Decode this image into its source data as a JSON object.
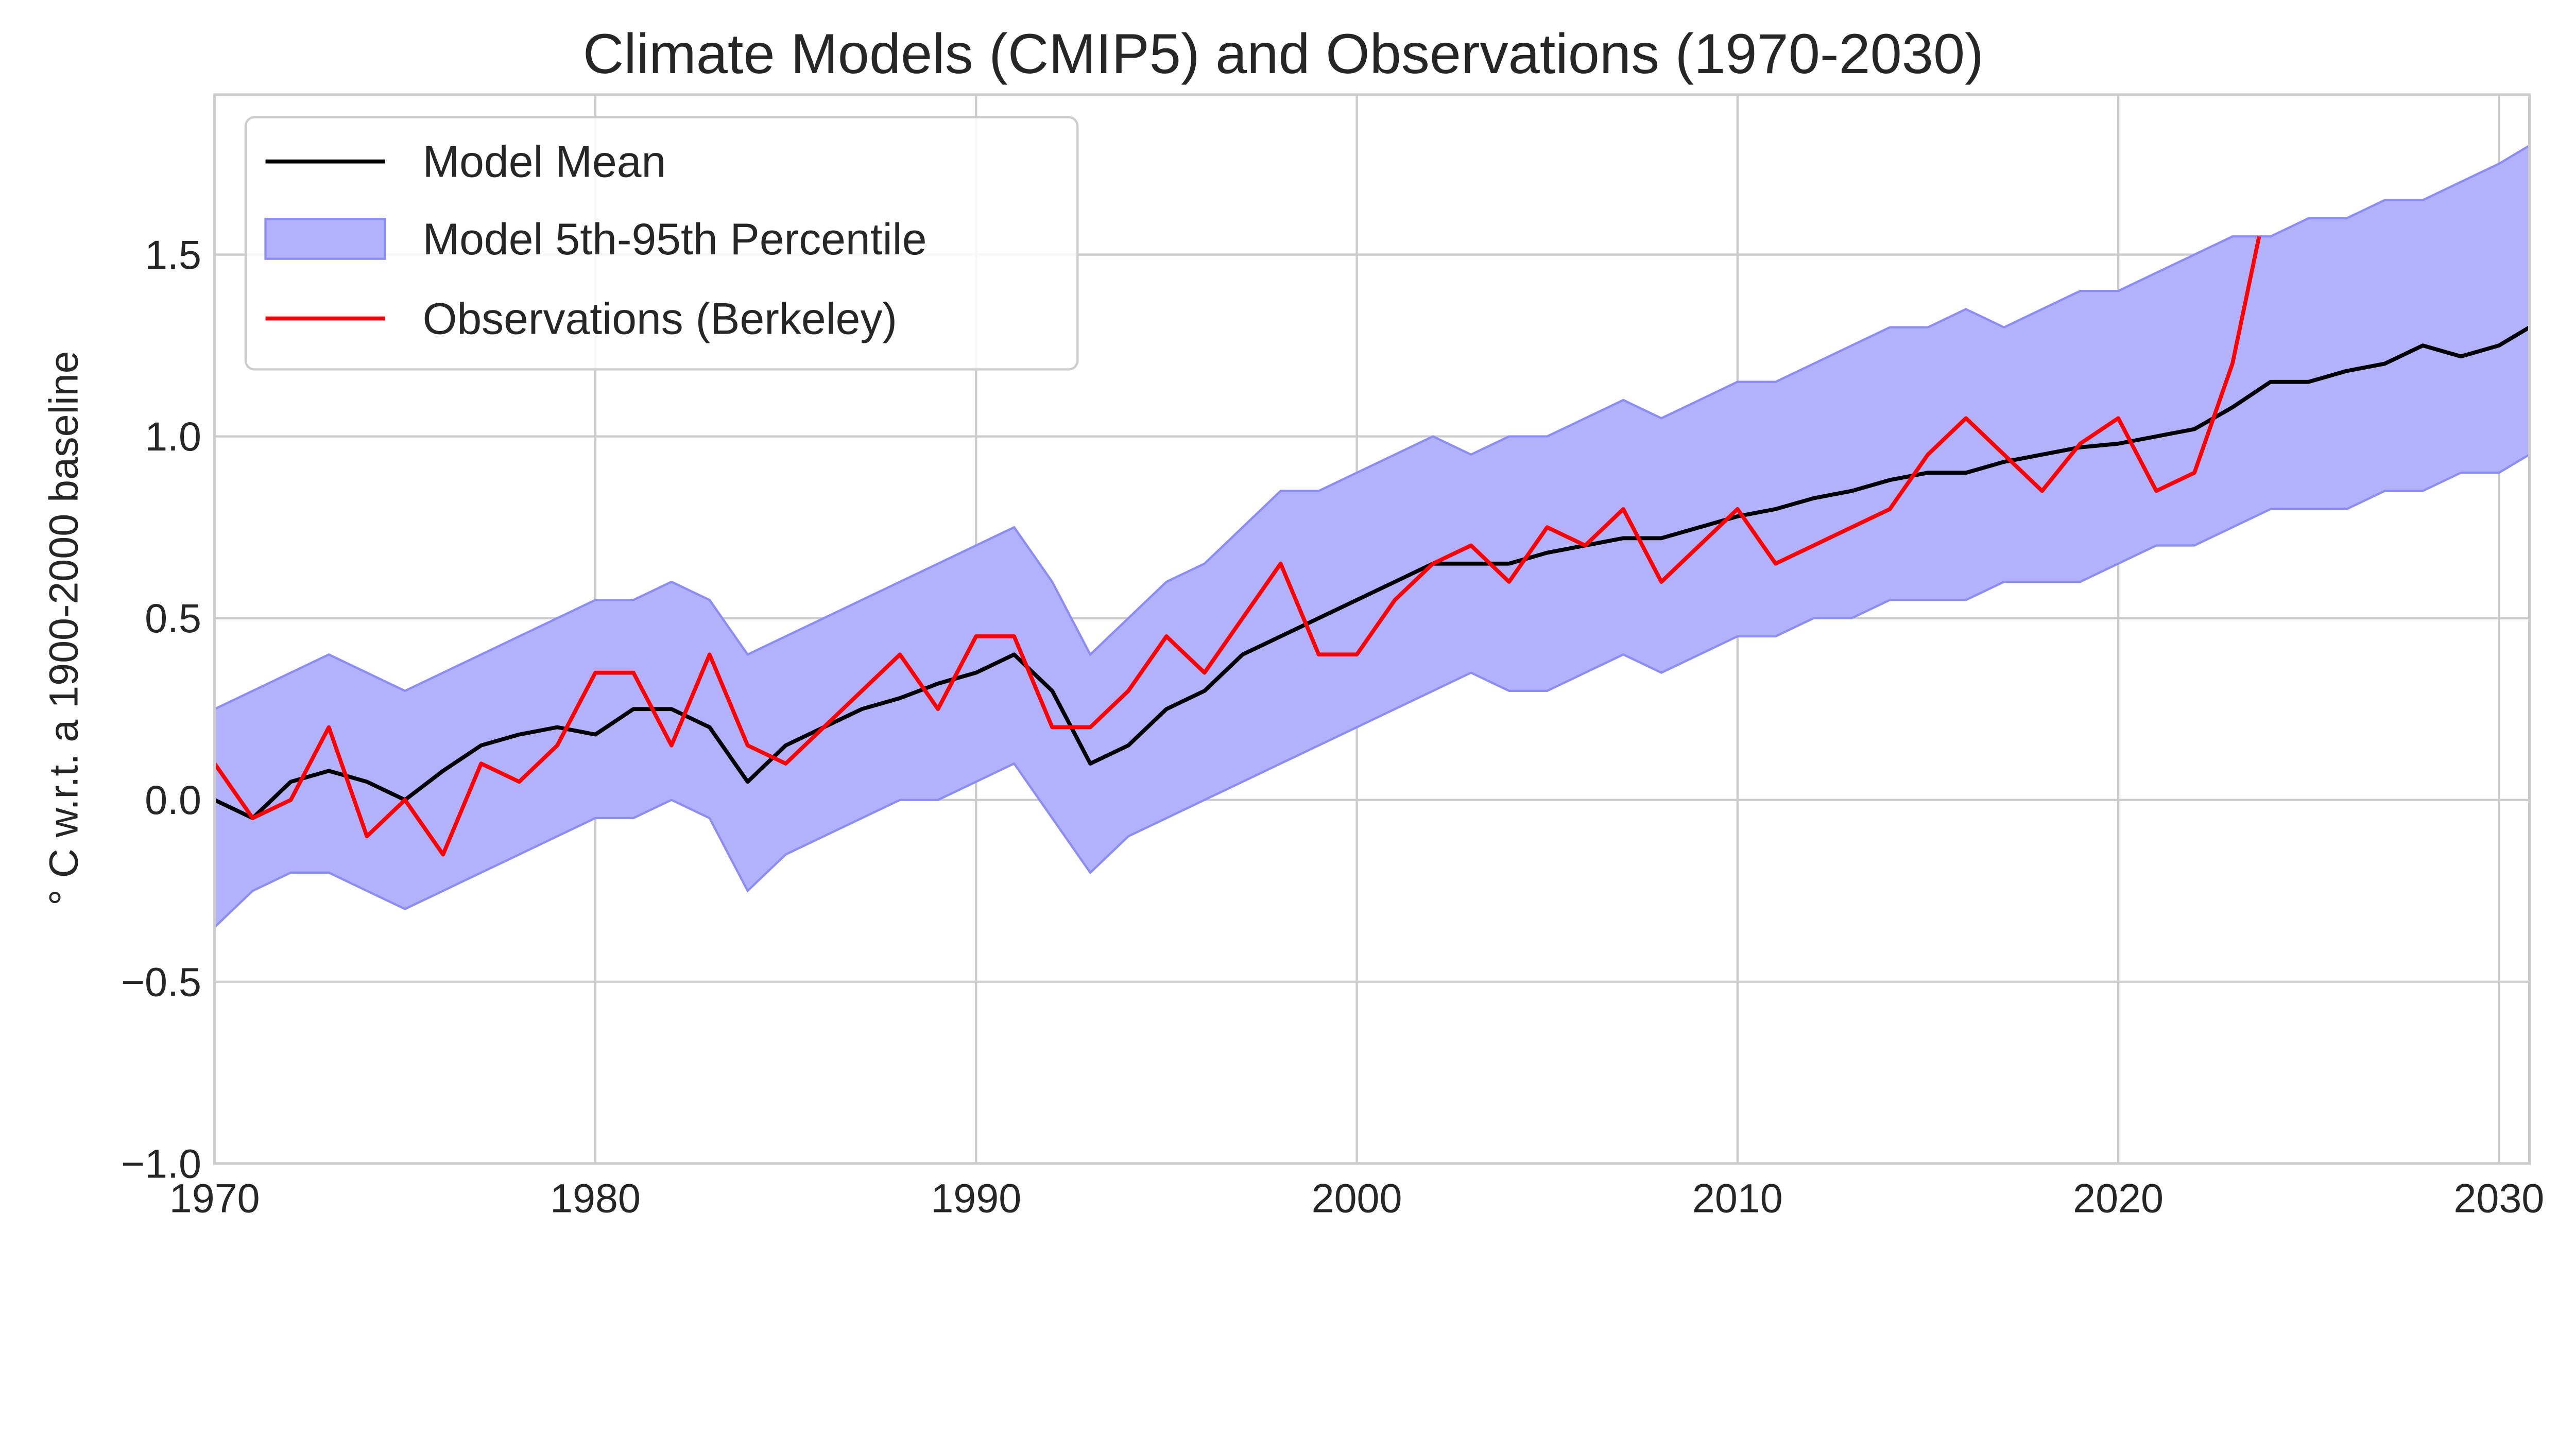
{
  "chart_data": {
    "type": "line",
    "title": "Climate Models (CMIP5) and Observations (1970-2030)",
    "xlabel": "",
    "ylabel": "$^\\circ$ C w.r.t. a 1900-2000 baseline",
    "ylabel_display": "° C w.r.t. a 1900-2000 baseline",
    "xlim": [
      1970,
      2030.8
    ],
    "ylim": [
      -1.0,
      1.94
    ],
    "grid": true,
    "legend_position": "top-left",
    "xticks": [
      1970,
      1980,
      1990,
      2000,
      2010,
      2020,
      2030
    ],
    "xtick_labels": [
      "1970",
      "1980",
      "1990",
      "2000",
      "2010",
      "2020",
      "2030"
    ],
    "yticks": [
      -1.0,
      -0.5,
      0.0,
      0.5,
      1.0,
      1.5
    ],
    "ytick_labels": [
      "−1.0",
      "−0.5",
      "0.0",
      "0.5",
      "1.0",
      "1.5"
    ],
    "colors": {
      "mean": "#000000",
      "band_fill": "#b2b2fc",
      "band_edge": "#8c8cf5",
      "obs": "#ff0000",
      "grid": "#cccccc"
    },
    "legend": [
      "Model Mean",
      "Model 5th-95th Percentile",
      "Observations (Berkeley)"
    ],
    "model_x": [
      1970,
      1971,
      1972,
      1973,
      1974,
      1975,
      1976,
      1977,
      1978,
      1979,
      1980,
      1981,
      1982,
      1983,
      1984,
      1985,
      1986,
      1987,
      1988,
      1989,
      1990,
      1991,
      1992,
      1993,
      1994,
      1995,
      1996,
      1997,
      1998,
      1999,
      2000,
      2001,
      2002,
      2003,
      2004,
      2005,
      2006,
      2007,
      2008,
      2009,
      2010,
      2011,
      2012,
      2013,
      2014,
      2015,
      2016,
      2017,
      2018,
      2019,
      2020,
      2021,
      2022,
      2023,
      2024,
      2025,
      2026,
      2027,
      2028,
      2029,
      2030,
      2030.8
    ],
    "series": [
      {
        "name": "Model Mean",
        "values": [
          0.0,
          -0.05,
          0.05,
          0.08,
          0.05,
          0.0,
          0.08,
          0.15,
          0.18,
          0.2,
          0.18,
          0.25,
          0.25,
          0.2,
          0.05,
          0.15,
          0.2,
          0.25,
          0.28,
          0.32,
          0.35,
          0.4,
          0.3,
          0.1,
          0.15,
          0.25,
          0.3,
          0.4,
          0.45,
          0.5,
          0.55,
          0.6,
          0.65,
          0.65,
          0.65,
          0.68,
          0.7,
          0.72,
          0.72,
          0.75,
          0.78,
          0.8,
          0.83,
          0.85,
          0.88,
          0.9,
          0.9,
          0.93,
          0.95,
          0.97,
          0.98,
          1.0,
          1.02,
          1.08,
          1.15,
          1.15,
          1.18,
          1.2,
          1.25,
          1.22,
          1.25,
          1.3
        ]
      },
      {
        "name": "Model 5th-95th Percentile",
        "upper": [
          0.25,
          0.3,
          0.35,
          0.4,
          0.35,
          0.3,
          0.35,
          0.4,
          0.45,
          0.5,
          0.55,
          0.55,
          0.6,
          0.55,
          0.4,
          0.45,
          0.5,
          0.55,
          0.6,
          0.65,
          0.7,
          0.75,
          0.6,
          0.4,
          0.5,
          0.6,
          0.65,
          0.75,
          0.85,
          0.85,
          0.9,
          0.95,
          1.0,
          0.95,
          1.0,
          1.0,
          1.05,
          1.1,
          1.05,
          1.1,
          1.15,
          1.15,
          1.2,
          1.25,
          1.3,
          1.3,
          1.35,
          1.3,
          1.35,
          1.4,
          1.4,
          1.45,
          1.5,
          1.55,
          1.55,
          1.6,
          1.6,
          1.65,
          1.65,
          1.7,
          1.75,
          1.8
        ],
        "lower": [
          -0.35,
          -0.25,
          -0.2,
          -0.2,
          -0.25,
          -0.3,
          -0.25,
          -0.2,
          -0.15,
          -0.1,
          -0.05,
          -0.05,
          0.0,
          -0.05,
          -0.25,
          -0.15,
          -0.1,
          -0.05,
          0.0,
          0.0,
          0.05,
          0.1,
          -0.05,
          -0.2,
          -0.1,
          -0.05,
          0.0,
          0.05,
          0.1,
          0.15,
          0.2,
          0.25,
          0.3,
          0.35,
          0.3,
          0.3,
          0.35,
          0.4,
          0.35,
          0.4,
          0.45,
          0.45,
          0.5,
          0.5,
          0.55,
          0.55,
          0.55,
          0.6,
          0.6,
          0.6,
          0.65,
          0.7,
          0.7,
          0.75,
          0.8,
          0.8,
          0.8,
          0.85,
          0.85,
          0.9,
          0.9,
          0.95
        ]
      },
      {
        "name": "Observations (Berkeley)",
        "x": [
          1970,
          1971,
          1972,
          1973,
          1974,
          1975,
          1976,
          1977,
          1978,
          1979,
          1980,
          1981,
          1982,
          1983,
          1984,
          1985,
          1986,
          1987,
          1988,
          1989,
          1990,
          1991,
          1992,
          1993,
          1994,
          1995,
          1996,
          1997,
          1998,
          1999,
          2000,
          2001,
          2002,
          2003,
          2004,
          2005,
          2006,
          2007,
          2008,
          2009,
          2010,
          2011,
          2012,
          2013,
          2014,
          2015,
          2016,
          2017,
          2018,
          2019,
          2020,
          2021,
          2022,
          2023,
          2023.7
        ],
        "values": [
          0.1,
          -0.05,
          0.0,
          0.2,
          -0.1,
          0.0,
          -0.15,
          0.1,
          0.05,
          0.15,
          0.35,
          0.35,
          0.15,
          0.4,
          0.15,
          0.1,
          0.2,
          0.3,
          0.4,
          0.25,
          0.45,
          0.45,
          0.2,
          0.2,
          0.3,
          0.45,
          0.35,
          0.5,
          0.65,
          0.4,
          0.4,
          0.55,
          0.65,
          0.7,
          0.6,
          0.75,
          0.7,
          0.8,
          0.6,
          0.7,
          0.8,
          0.65,
          0.7,
          0.75,
          0.8,
          0.95,
          1.05,
          0.95,
          0.85,
          0.98,
          1.05,
          0.85,
          0.9,
          1.2,
          1.55
        ]
      }
    ]
  }
}
